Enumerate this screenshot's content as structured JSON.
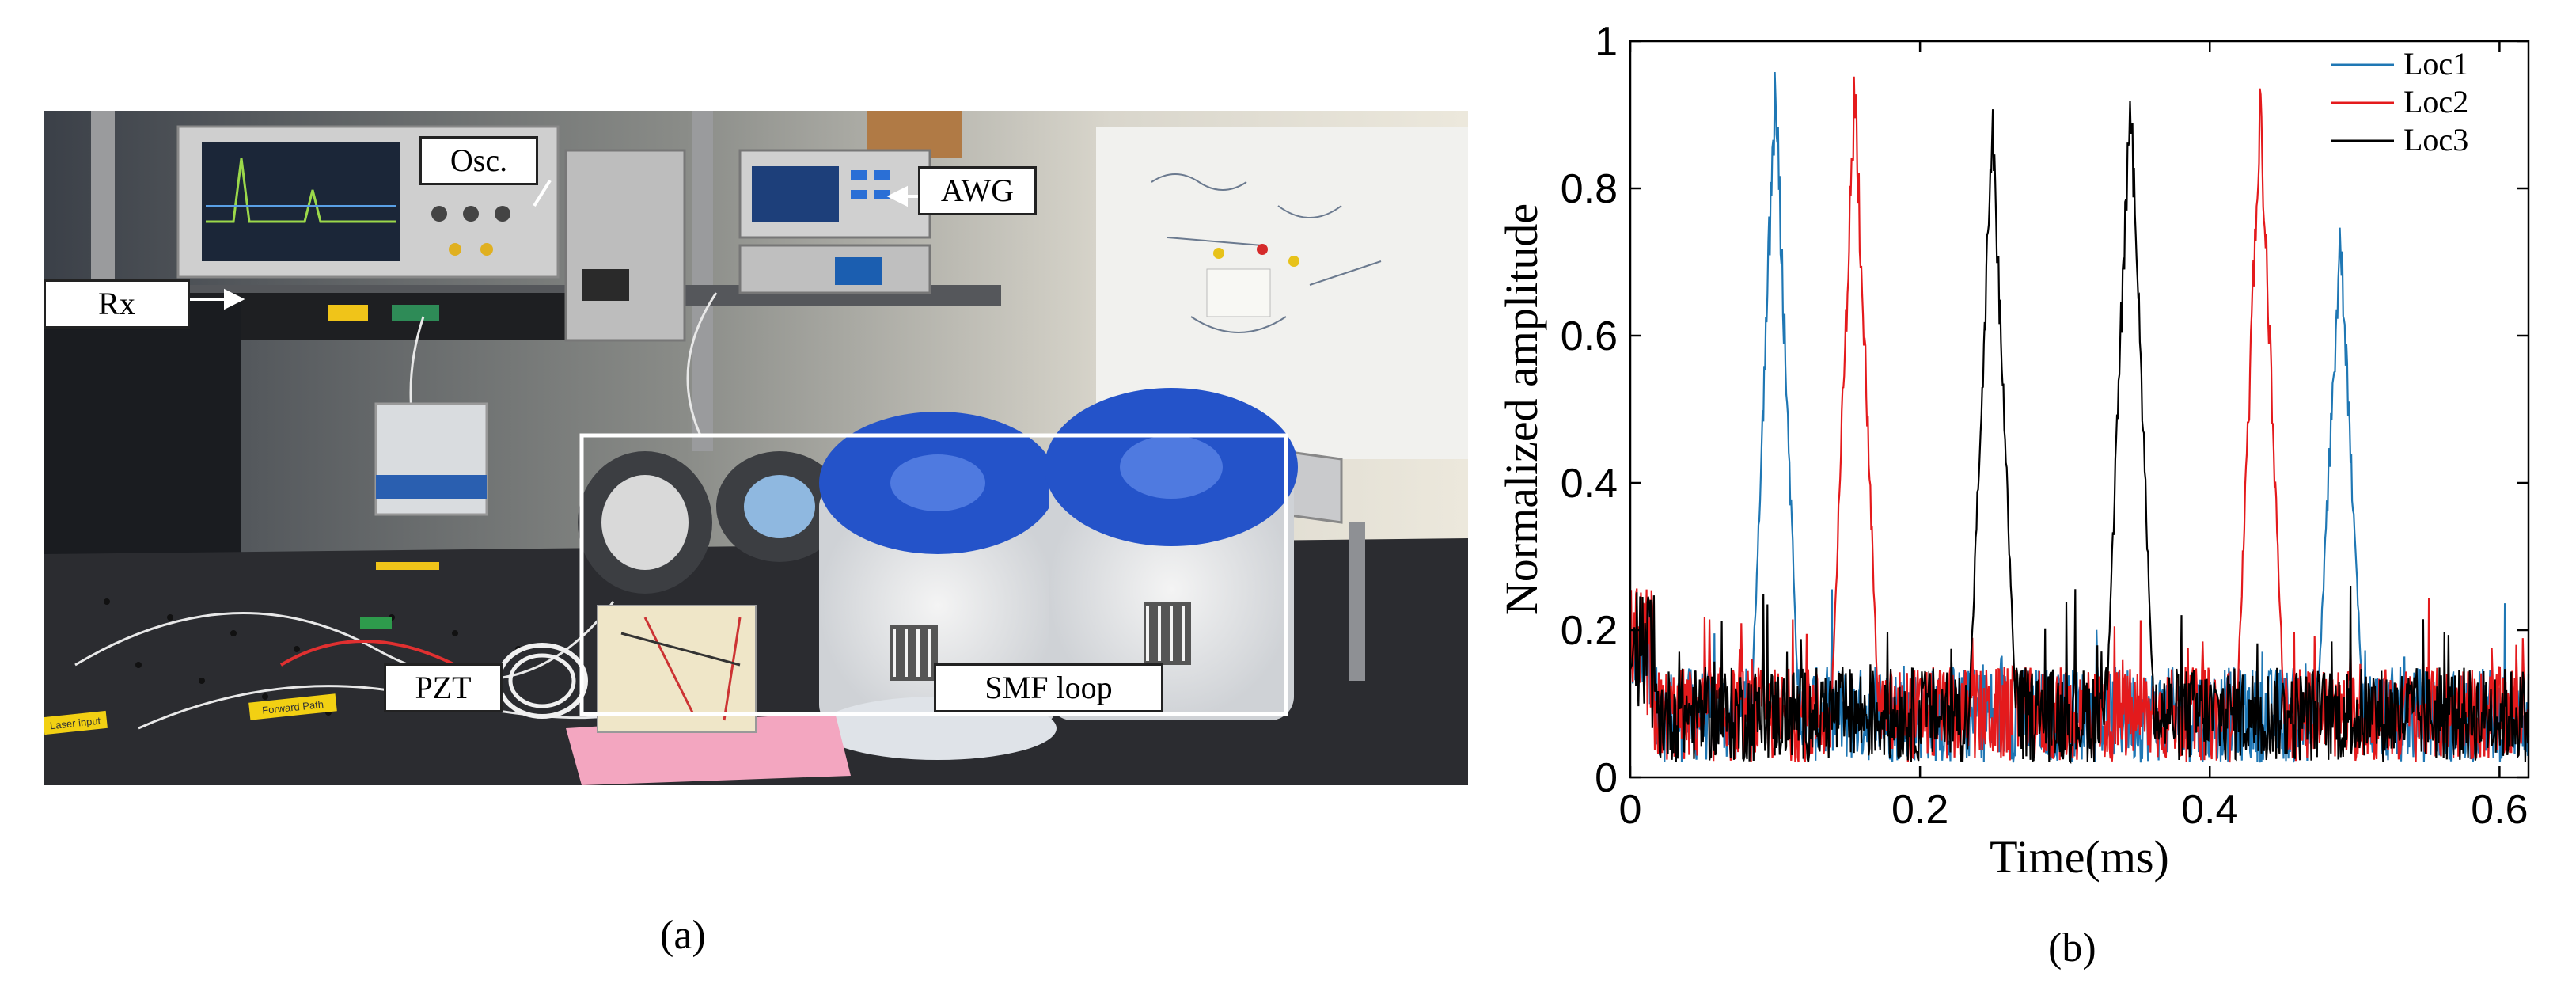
{
  "panel_a": {
    "labels": {
      "osc": "Osc.",
      "awg": "AWG",
      "rx": "Rx",
      "pzt": "PZT",
      "smf_loop": "SMF loop",
      "tape_1": "Laser input",
      "tape_2": "Forward Path"
    },
    "caption": "(a)"
  },
  "panel_b": {
    "caption": "(b)"
  },
  "colors": {
    "loc1": "#1f77b4",
    "loc2": "#e41a1c",
    "loc3": "#000000"
  },
  "chart_data": {
    "type": "line",
    "xlabel": "Time(ms)",
    "ylabel": "Normalized amplitude",
    "xlim": [
      0,
      0.62
    ],
    "ylim": [
      0,
      1
    ],
    "xticks": [
      "0",
      "0.2",
      "0.4",
      "0.6"
    ],
    "yticks": [
      "0",
      "0.2",
      "0.4",
      "0.6",
      "0.8",
      "1"
    ],
    "legend_position": "top-right",
    "baseline_noise": 0.08,
    "series": [
      {
        "name": "Loc1",
        "color": "#1f77b4",
        "peaks": [
          {
            "x": 0.1,
            "y": 1.0
          },
          {
            "x": 0.49,
            "y": 0.78
          }
        ]
      },
      {
        "name": "Loc2",
        "color": "#e41a1c",
        "peaks": [
          {
            "x": 0.155,
            "y": 1.0
          },
          {
            "x": 0.435,
            "y": 0.97
          }
        ]
      },
      {
        "name": "Loc3",
        "color": "#000000",
        "peaks": [
          {
            "x": 0.25,
            "y": 0.93
          },
          {
            "x": 0.345,
            "y": 1.0
          }
        ]
      }
    ]
  }
}
